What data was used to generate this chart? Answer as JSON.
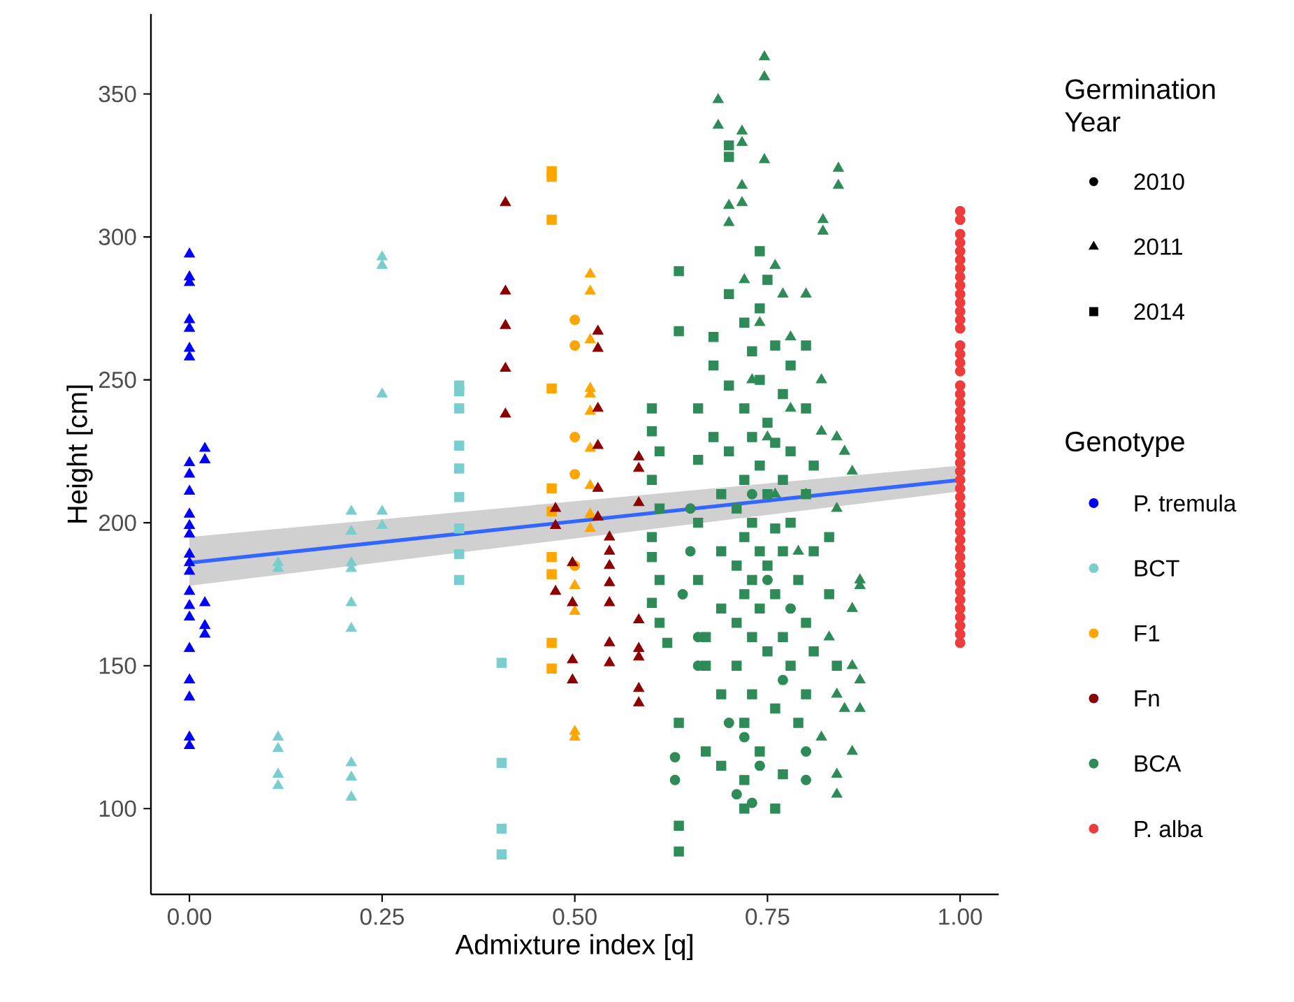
{
  "chart_data": {
    "type": "scatter",
    "xlabel": "Admixture index [q]",
    "ylabel": "Height [cm]",
    "xlim": [
      -0.05,
      1.05
    ],
    "ylim": [
      70,
      378
    ],
    "xticks": [
      {
        "value": 0,
        "label": "0.00"
      },
      {
        "value": 0.25,
        "label": "0.25"
      },
      {
        "value": 0.5,
        "label": "0.50"
      },
      {
        "value": 0.75,
        "label": "0.75"
      },
      {
        "value": 1,
        "label": "1.00"
      }
    ],
    "yticks": [
      100,
      150,
      200,
      250,
      300,
      350
    ],
    "legend": "right",
    "legend_title": "Genotype",
    "annotations": [
      "Germination Year",
      "2010",
      "2011",
      "2014"
    ],
    "series": [
      {
        "name": "P. tremula",
        "color": "#0000ff",
        "marker": "triangle",
        "x": [
          0,
          0,
          0,
          0,
          0,
          0,
          0,
          0,
          0,
          0,
          0,
          0,
          0,
          0,
          0,
          0,
          0,
          0,
          0,
          0,
          0,
          0,
          0,
          0,
          0.02,
          0.02,
          0.02,
          0.02,
          0.02
        ],
        "values": [
          294,
          286,
          284,
          271,
          268,
          261,
          258,
          221,
          217,
          211,
          203,
          199,
          196,
          189,
          186,
          183,
          176,
          171,
          167,
          156,
          145,
          139,
          125,
          122,
          226,
          222,
          172,
          164,
          161
        ]
      },
      {
        "name": "BCT",
        "color": "#79cdcd",
        "marker": "triangle",
        "x": [
          0.115,
          0.115,
          0.115,
          0.115,
          0.115,
          0.115,
          0.21,
          0.21,
          0.21,
          0.21,
          0.21,
          0.21,
          0.21,
          0.21,
          0.21,
          0.25,
          0.25,
          0.25,
          0.25,
          0.25
        ],
        "values": [
          186,
          184,
          125,
          121,
          112,
          108,
          204,
          197,
          186,
          184,
          172,
          163,
          116,
          111,
          104,
          293,
          290,
          245,
          204,
          199
        ]
      },
      {
        "color": "#79cdcd",
        "marker": "square",
        "x": [
          0.35,
          0.35,
          0.35,
          0.35,
          0.35,
          0.35,
          0.35,
          0.35,
          0.35,
          0.405,
          0.405,
          0.405,
          0.405
        ],
        "values": [
          248,
          246,
          240,
          227,
          219,
          209,
          198,
          189,
          180,
          151,
          116,
          93,
          84
        ]
      },
      {
        "name": "F1",
        "color": "#ffa500",
        "marker": "square",
        "x": [
          0.47,
          0.47,
          0.47,
          0.47,
          0.47,
          0.47,
          0.47,
          0.47,
          0.47,
          0.47
        ],
        "values": [
          323,
          321,
          306,
          247,
          212,
          204,
          188,
          182,
          158,
          149
        ]
      },
      {
        "color": "#ffa500",
        "marker": "circle",
        "x": [
          0.5,
          0.5,
          0.5,
          0.5,
          0.5
        ],
        "values": [
          271,
          262,
          230,
          217,
          185
        ]
      },
      {
        "color": "#ffa500",
        "marker": "triangle",
        "x": [
          0.52,
          0.52,
          0.52,
          0.52,
          0.52,
          0.52,
          0.52,
          0.52,
          0.52,
          0.52,
          0.5,
          0.5,
          0.5,
          0.5
        ],
        "values": [
          287,
          281,
          264,
          247,
          245,
          239,
          226,
          213,
          203,
          198,
          178,
          169,
          127,
          125
        ]
      },
      {
        "name": "Fn",
        "color": "#8b0000",
        "marker": "triangle",
        "x": [
          0.41,
          0.41,
          0.41,
          0.41,
          0.41,
          0.53,
          0.53,
          0.53,
          0.53,
          0.53,
          0.53,
          0.497,
          0.497,
          0.497,
          0.497,
          0.545,
          0.545,
          0.545,
          0.545,
          0.545,
          0.545,
          0.545,
          0.475,
          0.475,
          0.475,
          0.583,
          0.583,
          0.583,
          0.583,
          0.583,
          0.583,
          0.583,
          0.583
        ],
        "values": [
          312,
          281,
          269,
          254,
          238,
          267,
          261,
          240,
          227,
          212,
          202,
          186,
          172,
          152,
          145,
          195,
          190,
          185,
          179,
          172,
          158,
          151,
          205,
          199,
          176,
          223,
          219,
          207,
          166,
          156,
          153,
          142,
          137
        ]
      },
      {
        "name": "BCA",
        "color": "#2e8b57",
        "marker": "square",
        "x": [
          0.6,
          0.6,
          0.61,
          0.6,
          0.61,
          0.6,
          0.6,
          0.61,
          0.6,
          0.61,
          0.62,
          0.635,
          0.635,
          0.635,
          0.635,
          0.635,
          0.66,
          0.66,
          0.66,
          0.66,
          0.67,
          0.67,
          0.67,
          0.68,
          0.68,
          0.68,
          0.69,
          0.69,
          0.69,
          0.69,
          0.69,
          0.7,
          0.7,
          0.7,
          0.7,
          0.7,
          0.71,
          0.71,
          0.71,
          0.71,
          0.72,
          0.72,
          0.72,
          0.72,
          0.72,
          0.72,
          0.72,
          0.73,
          0.73,
          0.73,
          0.73,
          0.73,
          0.73,
          0.74,
          0.74,
          0.74,
          0.74,
          0.74,
          0.74,
          0.74,
          0.75,
          0.75,
          0.75,
          0.75,
          0.75,
          0.76,
          0.76,
          0.76,
          0.76,
          0.76,
          0.76,
          0.77,
          0.77,
          0.77,
          0.77,
          0.77,
          0.78,
          0.78,
          0.78,
          0.78,
          0.79,
          0.79,
          0.8,
          0.8,
          0.8,
          0.8,
          0.8,
          0.81,
          0.81,
          0.81,
          0.83,
          0.83,
          0.84,
          0.72
        ],
        "values": [
          240,
          232,
          225,
          215,
          205,
          195,
          188,
          180,
          172,
          165,
          158,
          288,
          267,
          130,
          94,
          85,
          240,
          222,
          200,
          180,
          160,
          150,
          120,
          255,
          265,
          230,
          210,
          190,
          170,
          140,
          115,
          332,
          328,
          280,
          248,
          225,
          205,
          185,
          165,
          150,
          270,
          240,
          215,
          195,
          175,
          130,
          110,
          260,
          230,
          200,
          180,
          160,
          140,
          295,
          275,
          250,
          220,
          190,
          170,
          120,
          285,
          235,
          210,
          185,
          155,
          262,
          228,
          198,
          175,
          135,
          100,
          245,
          215,
          190,
          160,
          112,
          255,
          225,
          200,
          150,
          180,
          130,
          262,
          240,
          210,
          165,
          140,
          220,
          190,
          155,
          195,
          175,
          150,
          100
        ]
      },
      {
        "color": "#2e8b57",
        "marker": "circle",
        "x": [
          0.63,
          0.63,
          0.64,
          0.65,
          0.65,
          0.66,
          0.66,
          0.7,
          0.71,
          0.72,
          0.73,
          0.74,
          0.75,
          0.77,
          0.8,
          0.8,
          0.78,
          0.73
        ],
        "values": [
          118,
          110,
          175,
          205,
          190,
          160,
          150,
          130,
          105,
          125,
          102,
          115,
          180,
          145,
          110,
          120,
          170,
          210
        ]
      },
      {
        "color": "#2e8b57",
        "marker": "triangle",
        "x": [
          0.746,
          0.746,
          0.686,
          0.686,
          0.717,
          0.717,
          0.746,
          0.717,
          0.7,
          0.7,
          0.717,
          0.842,
          0.842,
          0.822,
          0.822,
          0.76,
          0.77,
          0.72,
          0.74,
          0.78,
          0.8,
          0.82,
          0.84,
          0.85,
          0.86,
          0.82,
          0.84,
          0.86,
          0.86,
          0.84,
          0.85,
          0.86,
          0.87,
          0.87,
          0.84,
          0.84,
          0.82,
          0.8,
          0.78,
          0.76,
          0.75,
          0.73,
          0.79,
          0.83,
          0.87,
          0.87
        ],
        "values": [
          363,
          356,
          348,
          339,
          337,
          333,
          327,
          318,
          311,
          305,
          312,
          324,
          318,
          306,
          302,
          290,
          280,
          285,
          270,
          265,
          280,
          250,
          230,
          225,
          218,
          232,
          205,
          170,
          150,
          140,
          135,
          120,
          180,
          178,
          105,
          112,
          125,
          210,
          240,
          210,
          230,
          250,
          190,
          160,
          145,
          135
        ]
      },
      {
        "name": "P. alba",
        "color": "#ee3b3b",
        "marker": "circle",
        "x": [
          1,
          1,
          1,
          1,
          1,
          1,
          1,
          1,
          1,
          1,
          1,
          1,
          1,
          1,
          1,
          1,
          1,
          1,
          1,
          1,
          1,
          1,
          1,
          1,
          1,
          1,
          1,
          1,
          1,
          1,
          1,
          1,
          1,
          1,
          1,
          1,
          1,
          1,
          1,
          1,
          1,
          1,
          1,
          1,
          1,
          1,
          1,
          1,
          1
        ],
        "values": [
          158,
          161,
          164,
          167,
          170,
          173,
          176,
          179,
          182,
          185,
          188,
          191,
          194,
          197,
          200,
          203,
          206,
          209,
          212,
          215,
          218,
          221,
          224,
          227,
          230,
          233,
          236,
          239,
          242,
          245,
          248,
          253,
          256,
          259,
          262,
          268,
          271,
          274,
          277,
          280,
          283,
          286,
          289,
          292,
          295,
          298,
          301,
          306,
          309
        ]
      },
      {
        "type": "line",
        "color": "#3366ff",
        "x": [
          0,
          1
        ],
        "values": [
          186,
          215
        ],
        "lower": [
          178,
          211
        ],
        "upper": [
          195,
          220
        ]
      }
    ]
  }
}
